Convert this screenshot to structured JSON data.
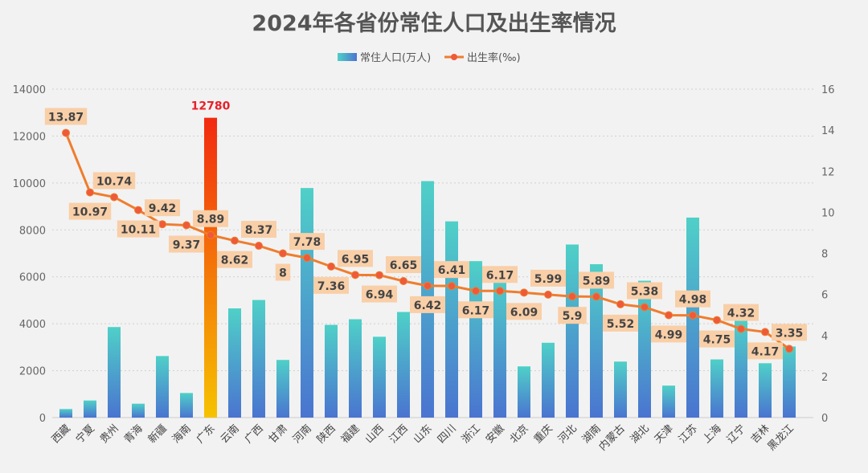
{
  "chart_data": {
    "type": "bar+line",
    "title": "2024年各省份常住人口及出生率情况",
    "categories": [
      "西藏",
      "宁夏",
      "贵州",
      "青海",
      "新疆",
      "海南",
      "广东",
      "云南",
      "广西",
      "甘肃",
      "河南",
      "陕西",
      "福建",
      "山西",
      "江西",
      "山东",
      "四川",
      "浙江",
      "安徽",
      "北京",
      "重庆",
      "河北",
      "湖南",
      "内蒙古",
      "湖北",
      "天津",
      "江苏",
      "上海",
      "辽宁",
      "吉林",
      "黑龙江"
    ],
    "series": [
      {
        "name": "常住人口(万人)",
        "type": "bar",
        "axis": "left",
        "values": [
          365,
          729,
          3860,
          593,
          2623,
          1048,
          12780,
          4655,
          5013,
          2458,
          9785,
          3953,
          4193,
          3446,
          4502,
          10080,
          8364,
          6670,
          6123,
          2183,
          3190,
          7378,
          6539,
          2388,
          5834,
          1364,
          8526,
          2480,
          4155,
          2317,
          3029
        ]
      },
      {
        "name": "出生率(‰)",
        "type": "line",
        "axis": "right",
        "values": [
          13.87,
          10.97,
          10.74,
          10.11,
          9.42,
          9.37,
          8.89,
          8.62,
          8.37,
          8,
          7.78,
          7.36,
          6.95,
          6.94,
          6.65,
          6.42,
          6.41,
          6.17,
          6.17,
          6.09,
          5.99,
          5.9,
          5.89,
          5.52,
          5.38,
          4.99,
          4.98,
          4.75,
          4.32,
          4.17,
          3.35
        ]
      }
    ],
    "highlight": {
      "category": "广东",
      "label": "12780",
      "label_color": "#e8202a"
    },
    "y_left": {
      "range": [
        0,
        14000
      ],
      "ticks": [
        0,
        2000,
        4000,
        6000,
        8000,
        10000,
        12000,
        14000
      ]
    },
    "y_right": {
      "range": [
        0,
        16
      ],
      "ticks": [
        0,
        2,
        4,
        6,
        8,
        10,
        12,
        14,
        16
      ]
    },
    "grid": true,
    "legend_position": "top-center",
    "colors": {
      "bar_top": "#4fd0c8",
      "bar_bottom": "#4a74d0",
      "highlight_top": "#f22a10",
      "highlight_bottom": "#f6c200",
      "line": "#ef7d2e",
      "marker": "#ee5a3a",
      "label_bg": "#f9cfa8"
    }
  }
}
